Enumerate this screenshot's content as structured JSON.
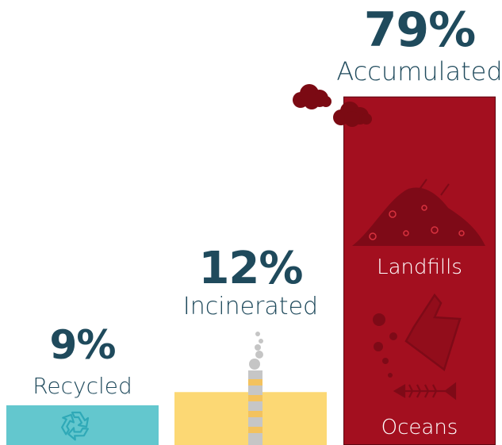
{
  "chart_data": {
    "type": "bar",
    "unit": "%",
    "categories": [
      "Recycled",
      "Incinerated",
      "Accumulated"
    ],
    "values": [
      9,
      12,
      79
    ],
    "value_labels": [
      "9%",
      "12%",
      "79%"
    ],
    "ylim": [
      0,
      100
    ],
    "sublabels": {
      "landfills": "Landfills",
      "oceans": "Oceans"
    }
  },
  "colors": {
    "recycled": "#63c7ce",
    "incinerated": "#fcd874",
    "accumulated": "#a30f1f",
    "accumulated_icon": "#7e0a17",
    "smoke_dark": "#7b0a13",
    "smoke_gray": "#c5c5c5",
    "chimney": "#c6c6c6",
    "chimney_band": "#f3c25e",
    "recycle_icon": "#2fa9b7",
    "text_dark": "#1f4a5c",
    "text_light": "#ffffff"
  },
  "icons": [
    "recycle-icon",
    "chimney-icon",
    "landfill-icon",
    "plastic-bag-icon",
    "fish-bone-icon",
    "bubbles-icon",
    "smoke-cloud-icon"
  ]
}
